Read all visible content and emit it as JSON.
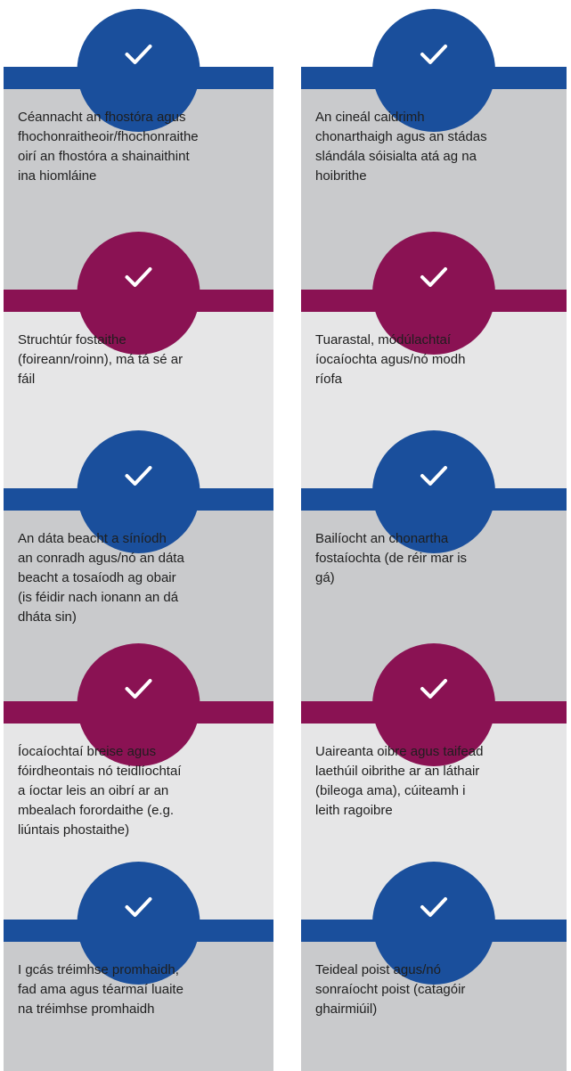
{
  "cells": [
    {
      "lines": [
        "Céannacht an fhostóra agus",
        "fhochonraitheoir/fhochonraithe",
        "oirí an fhostóra a shainaithint",
        "ina hiomláine"
      ]
    },
    {
      "lines": [
        "An cineál caidrimh",
        "chonarthaigh agus an stádas",
        "slándála sóisialta atá ag na",
        "hoibrithe"
      ]
    },
    {
      "lines": [
        "Struchtúr fostaithe",
        "(foireann/roinn),  má tá sé ar",
        "fáil"
      ]
    },
    {
      "lines": [
        "Tuarastal, módúlachtaí",
        "íocaíochta agus/nó modh",
        "ríofa"
      ]
    },
    {
      "lines": [
        "An dáta beacht a síníodh",
        "an conradh agus/nó an dáta",
        "beacht a tosaíodh ag obair",
        "(is féidir nach ionann  an dá",
        "dháta sin)"
      ]
    },
    {
      "lines": [
        "Bailíocht an chonartha",
        "fostaíochta (de réir mar is",
        "gá)"
      ]
    },
    {
      "lines": [
        "Íocaíochtaí breise agus",
        "fóirdheontais nó teidlíochtaí",
        "a íoctar leis an oibrí ar an",
        "mbealach forordaithe (e.g.",
        "liúntais phostaithe)"
      ]
    },
    {
      "lines": [
        "Uaireanta oibre agus taifead",
        "laethúil oibrithe ar an láthair",
        "(bileoga ama), cúiteamh i",
        "leith ragoibre"
      ]
    },
    {
      "lines": [
        "I gcás tréimhse promhaidh,",
        "fad ama agus téarmaí luaite",
        "na tréimhse promhaidh"
      ]
    },
    {
      "lines": [
        "Teideal poist agus/nó",
        "sonraíocht poist (catagóir",
        "ghairmiúil)"
      ]
    }
  ]
}
